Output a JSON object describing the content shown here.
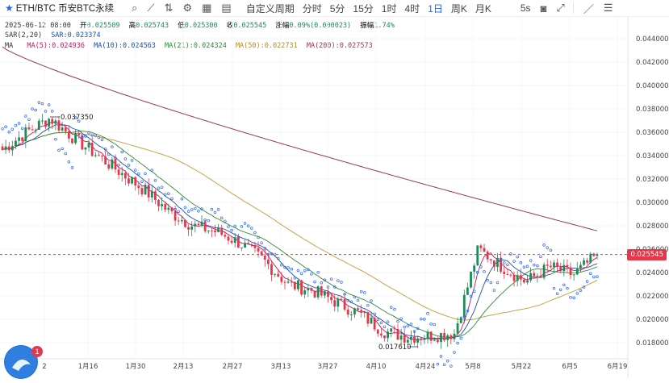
{
  "toolbar": {
    "symbol": "ETH/BTC 币安BTC永续",
    "custom_period": "自定义周期",
    "intervals": [
      "分时",
      "5分",
      "15分",
      "1时",
      "4时",
      "1日",
      "周K",
      "月K"
    ],
    "active_interval": "1日",
    "refresh": "5s"
  },
  "ohlc": {
    "date": "2025-06-12 08:00",
    "open_label": "开",
    "open": "0.025509",
    "high_label": "高",
    "high": "0.025743",
    "low_label": "低",
    "low": "0.025300",
    "close_label": "收",
    "close": "0.025545",
    "change_label": "涨幅",
    "change": "0.09%(0.000023)",
    "amp_label": "振幅",
    "amp": "1.74%"
  },
  "sar": {
    "label": "SAR(2,20)",
    "value": "SAR:0.023374"
  },
  "ma": {
    "label": "MA",
    "items": [
      {
        "text": "MA(5):0.024936",
        "color": "#c2185b"
      },
      {
        "text": "MA(10):0.024563",
        "color": "#1e4fa8"
      },
      {
        "text": "MA(21):0.024324",
        "color": "#2e8b3a"
      },
      {
        "text": "MA(50):0.022731",
        "color": "#c8a24a"
      },
      {
        "text": "MA(200):0.027573",
        "color": "#9b3650"
      }
    ]
  },
  "chart_data": {
    "type": "candlestick",
    "price_axis": [
      "0.044000",
      "0.042000",
      "0.040000",
      "0.038000",
      "0.036000",
      "0.034000",
      "0.032000",
      "0.030000",
      "0.028000",
      "0.026000",
      "0.024000",
      "0.022000",
      "0.020000",
      "0.018000"
    ],
    "ylim": [
      0.0172,
      0.0453
    ],
    "date_axis": [
      "2",
      "1月16",
      "1月30",
      "2月13",
      "2月27",
      "3月13",
      "3月27",
      "4月10",
      "4月24",
      "5月8",
      "5月22",
      "6月5",
      "6月19"
    ],
    "high_annotation": "0.037350",
    "low_annotation": "0.017610",
    "last_price": "0.025545",
    "colors": {
      "up": "#1f8a55",
      "down": "#e6374a"
    },
    "key_closes": [
      0.0345,
      0.036,
      0.0372,
      0.0355,
      0.034,
      0.0325,
      0.031,
      0.0292,
      0.028,
      0.0275,
      0.0265,
      0.025,
      0.023,
      0.0225,
      0.0215,
      0.0205,
      0.019,
      0.0185,
      0.0186,
      0.0188,
      0.026,
      0.0245,
      0.0232,
      0.0245,
      0.0238,
      0.0255
    ]
  },
  "notifications": {
    "count": "1"
  }
}
